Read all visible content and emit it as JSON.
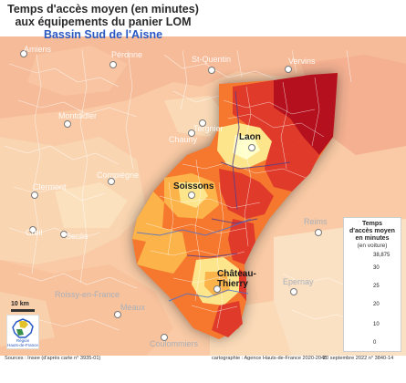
{
  "title": {
    "line1": "Temps d'accès moyen (en minutes)",
    "line2": "aux équipements du panier LOM",
    "subtitle": "Bassin Sud de l'Aisne"
  },
  "legend": {
    "title_line1": "Temps",
    "title_line2": "d'accès moyen",
    "title_line3": "en minutes",
    "unit": "(en voiture)",
    "ticks": [
      "38,875",
      "30",
      "25",
      "20",
      "10",
      "0"
    ],
    "colors": [
      "#b5101e",
      "#e03a2a",
      "#f5782e",
      "#fbb34a",
      "#fde58c",
      "#ffffcc"
    ]
  },
  "places": {
    "amiens": "Amiens",
    "peronne": "Péronne",
    "stquentin": "St-Quentin",
    "vervins": "Vervins",
    "montdidier": "Montdidier",
    "tergnier": "Tergnier",
    "chauny": "Chauny",
    "laon": "Laon",
    "compiegne": "Compiègne",
    "clermont": "Clermont",
    "soissons": "Soissons",
    "creil": "Creil",
    "senlis": "Senlis",
    "reims": "Reims",
    "chateau1": "Château-",
    "chateau2": "Thierry",
    "roissy": "Roissy-en-France",
    "meaux": "Meaux",
    "epernay": "Epernay",
    "coulommiers": "Coulommiers"
  },
  "scale": "10 km",
  "logo": {
    "line1": "Région",
    "line2": "Hauts-de-France"
  },
  "footer": {
    "sources": "Sources : Insee (d'après carte n° 3935-01)",
    "cartography": "cartographie : Agence Hauts-de-France 2020-2040",
    "date": "20 septembre 2022 n° 3840-14"
  }
}
